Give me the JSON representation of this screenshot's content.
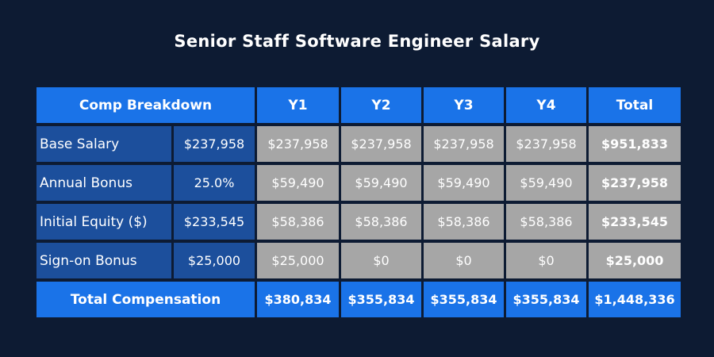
{
  "title": "Senior Staff Software Engineer Salary",
  "table": {
    "headers": {
      "breakdown": "Comp Breakdown",
      "y1": "Y1",
      "y2": "Y2",
      "y3": "Y3",
      "y4": "Y4",
      "total": "Total"
    },
    "rows": [
      {
        "label": "Base Salary",
        "param": "$237,958",
        "y1": "$237,958",
        "y2": "$237,958",
        "y3": "$237,958",
        "y4": "$237,958",
        "total": "$951,833"
      },
      {
        "label": "Annual Bonus",
        "param": "25.0%",
        "y1": "$59,490",
        "y2": "$59,490",
        "y3": "$59,490",
        "y4": "$59,490",
        "total": "$237,958"
      },
      {
        "label": "Initial Equity ($)",
        "param": "$233,545",
        "y1": "$58,386",
        "y2": "$58,386",
        "y3": "$58,386",
        "y4": "$58,386",
        "total": "$233,545"
      },
      {
        "label": "Sign-on Bonus",
        "param": "$25,000",
        "y1": "$25,000",
        "y2": "$0",
        "y3": "$0",
        "y4": "$0",
        "total": "$25,000"
      }
    ],
    "footer": {
      "label": "Total Compensation",
      "y1": "$380,834",
      "y2": "$355,834",
      "y3": "$355,834",
      "y4": "$355,834",
      "total": "$1,448,336"
    }
  },
  "colors": {
    "background": "#0d1b33",
    "header_blue": "#1a73e8",
    "row_label_blue": "#1c4f9c",
    "value_gray": "#a6a6a6",
    "text": "#ffffff"
  }
}
